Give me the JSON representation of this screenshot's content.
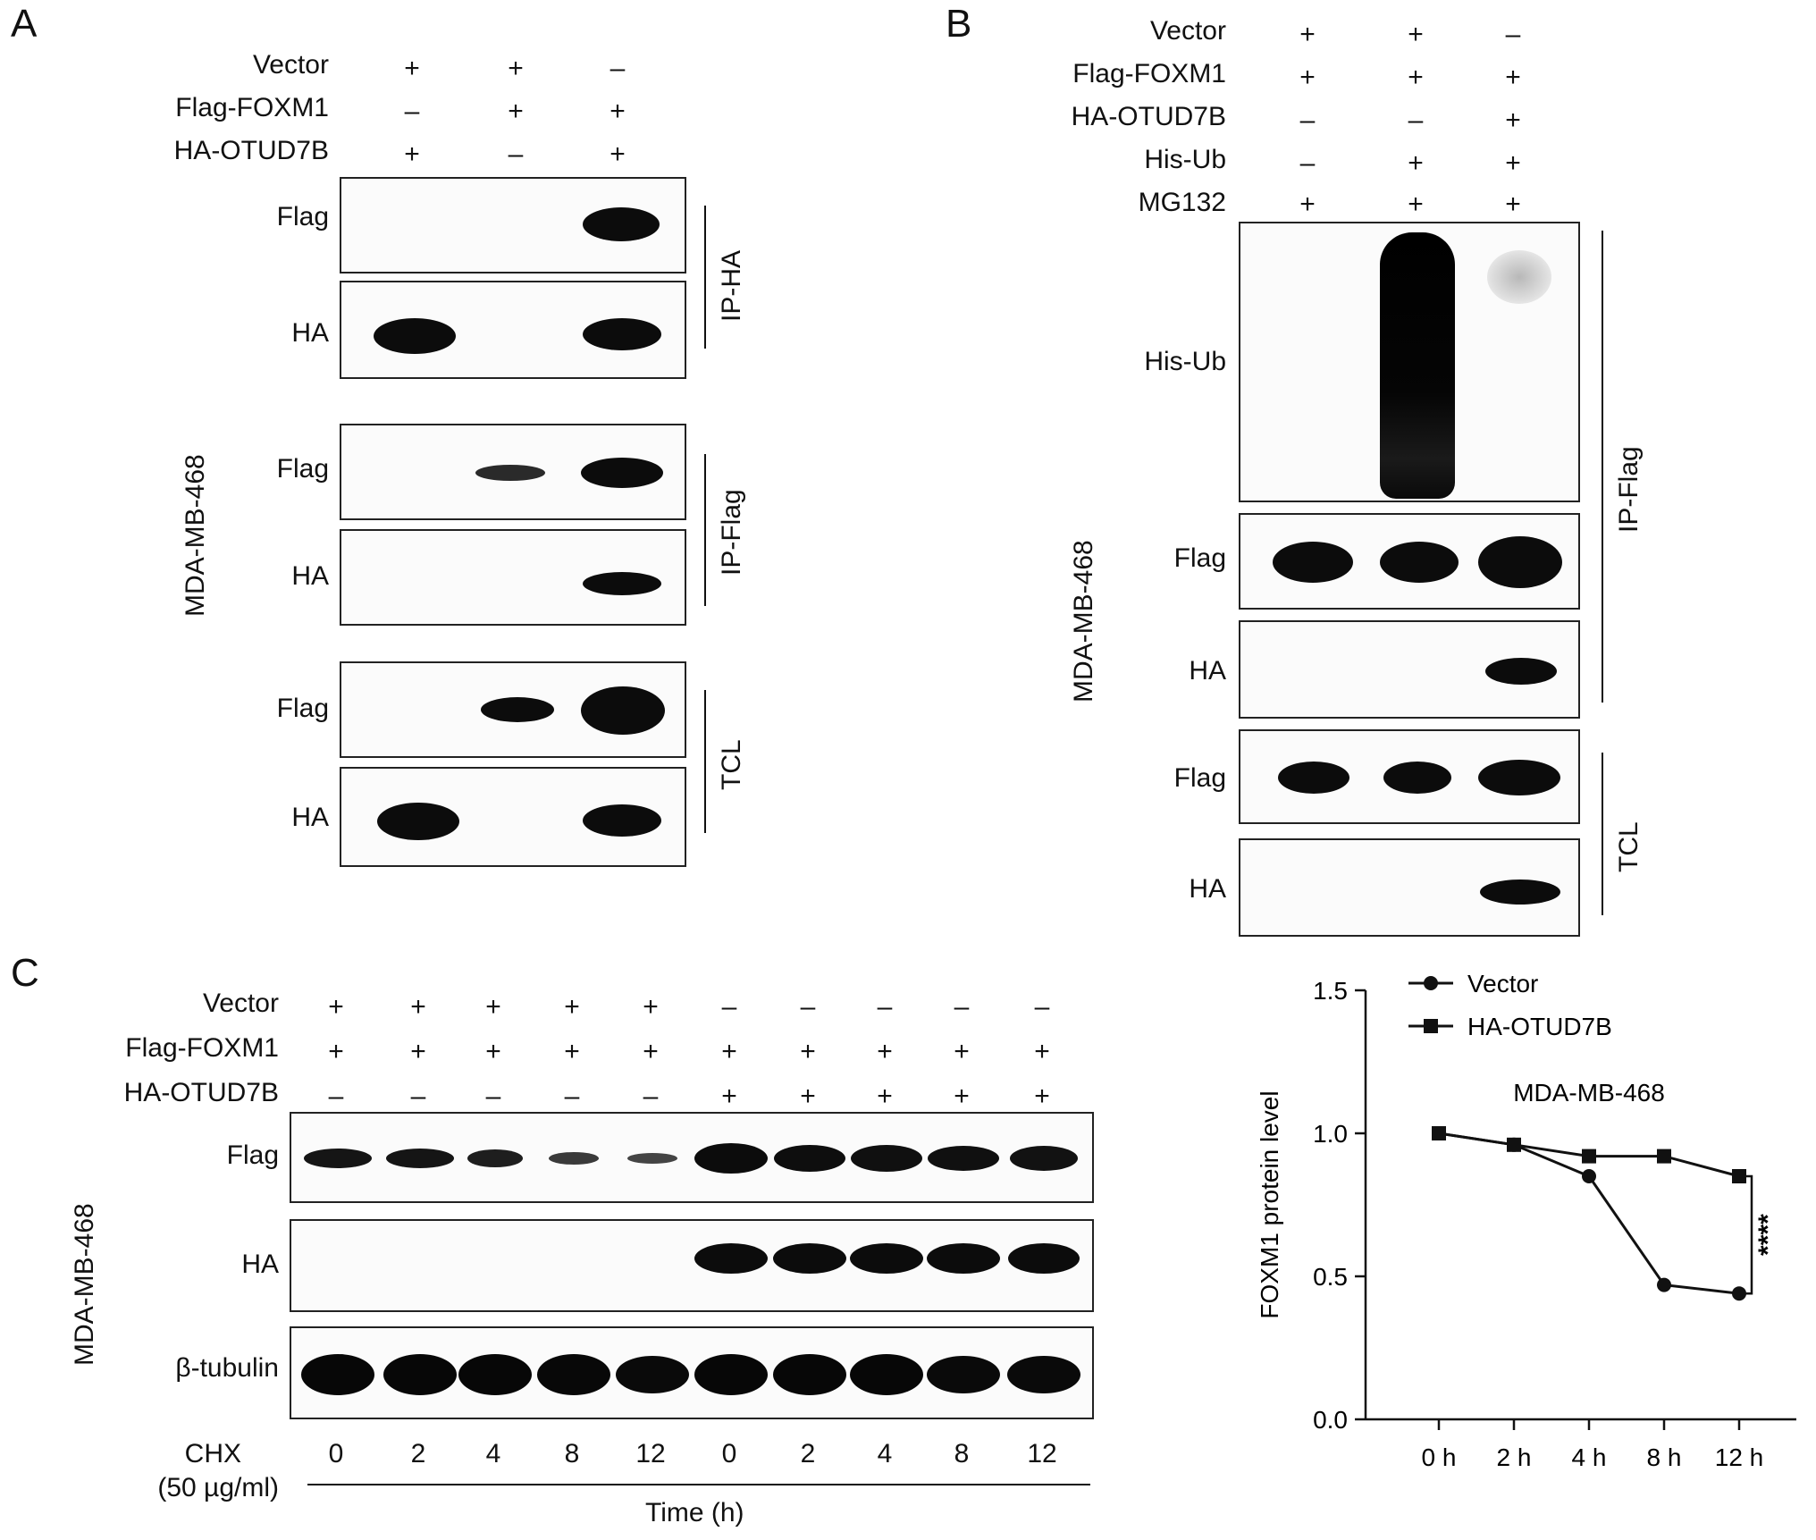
{
  "panel_a": {
    "letter": "A",
    "conditions": [
      {
        "label": "Vector",
        "signs": [
          "+",
          "+",
          "–"
        ]
      },
      {
        "label": "Flag-FOXM1",
        "signs": [
          "–",
          "+",
          "+"
        ]
      },
      {
        "label": "HA-OTUD7B",
        "signs": [
          "+",
          "–",
          "+"
        ]
      }
    ],
    "blot_labels": [
      "Flag",
      "HA",
      "Flag",
      "HA",
      "Flag",
      "HA"
    ],
    "groups": [
      "IP-HA",
      "IP-Flag",
      "TCL"
    ],
    "cell_line": "MDA-MB-468"
  },
  "panel_b": {
    "letter": "B",
    "conditions": [
      {
        "label": "Vector",
        "signs": [
          "+",
          "+",
          "–"
        ]
      },
      {
        "label": "Flag-FOXM1",
        "signs": [
          "+",
          "+",
          "+"
        ]
      },
      {
        "label": "HA-OTUD7B",
        "signs": [
          "–",
          "–",
          "+"
        ]
      },
      {
        "label": "His-Ub",
        "signs": [
          "–",
          "+",
          "+"
        ]
      },
      {
        "label": "MG132",
        "signs": [
          "+",
          "+",
          "+"
        ]
      }
    ],
    "blot_labels": [
      "His-Ub",
      "Flag",
      "HA",
      "Flag",
      "HA"
    ],
    "groups": [
      "IP-Flag",
      "TCL"
    ],
    "cell_line": "MDA-MB-468"
  },
  "panel_c": {
    "letter": "C",
    "conditions": [
      {
        "label": "Vector",
        "signs": [
          "+",
          "+",
          "+",
          "+",
          "+",
          "–",
          "–",
          "–",
          "–",
          "–"
        ]
      },
      {
        "label": "Flag-FOXM1",
        "signs": [
          "+",
          "+",
          "+",
          "+",
          "+",
          "+",
          "+",
          "+",
          "+",
          "+"
        ]
      },
      {
        "label": "HA-OTUD7B",
        "signs": [
          "–",
          "–",
          "–",
          "–",
          "–",
          "+",
          "+",
          "+",
          "+",
          "+"
        ]
      }
    ],
    "blot_labels": [
      "Flag",
      "HA",
      "β-tubulin"
    ],
    "cell_line": "MDA-MB-468",
    "chx_label_line1": "CHX",
    "chx_label_line2": "(50 µg/ml)",
    "chx_times": [
      "0",
      "2",
      "4",
      "8",
      "12",
      "0",
      "2",
      "4",
      "8",
      "12"
    ],
    "time_label": "Time (h)"
  },
  "chart_data": {
    "type": "line",
    "title": "MDA-MB-468",
    "xlabel": "",
    "ylabel": "FOXM1 protein level",
    "x": [
      "0 h",
      "2 h",
      "4 h",
      "8 h",
      "12 h"
    ],
    "ylim": [
      0.0,
      1.5
    ],
    "yticks": [
      "0.0",
      "0.5",
      "1.0",
      "1.5"
    ],
    "series": [
      {
        "name": "Vector",
        "marker": "circle",
        "values": [
          1.0,
          0.96,
          0.85,
          0.47,
          0.44
        ]
      },
      {
        "name": "HA-OTUD7B",
        "marker": "square",
        "values": [
          1.0,
          0.96,
          0.92,
          0.92,
          0.85
        ]
      }
    ],
    "legend_position": "top-left",
    "annotation": "****",
    "grid": false
  }
}
